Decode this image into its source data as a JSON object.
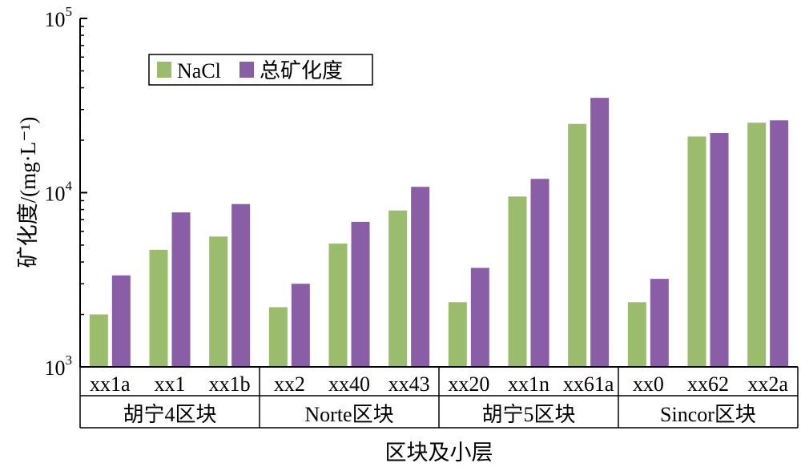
{
  "chart_data": {
    "type": "bar",
    "y_scale": "log",
    "ylim": [
      1000,
      100000
    ],
    "y_ticks": [
      {
        "value": 1000,
        "base": "10",
        "exp": "3"
      },
      {
        "value": 10000,
        "base": "10",
        "exp": "4"
      },
      {
        "value": 100000,
        "base": "10",
        "exp": "5"
      }
    ],
    "ylabel": "矿化度/(mg·L⁻¹)",
    "xlabel": "区块及小层",
    "categories": [
      "xx1a",
      "xx1",
      "xx1b",
      "xx2",
      "xx40",
      "xx43",
      "xx20",
      "xx1n",
      "xx61a",
      "xx0",
      "xx62",
      "xx2a"
    ],
    "groups": [
      {
        "label": "胡宁4区块",
        "start": 0,
        "end": 2
      },
      {
        "label": "Norte区块",
        "start": 3,
        "end": 5
      },
      {
        "label": "胡宁5区块",
        "start": 6,
        "end": 8
      },
      {
        "label": "Sincor区块",
        "start": 9,
        "end": 11
      }
    ],
    "series": [
      {
        "name": "NaCl",
        "color": "#9bbb6d",
        "values": [
          2000,
          4700,
          5600,
          2200,
          5100,
          7900,
          2350,
          9500,
          24800,
          2350,
          21000,
          25200
        ]
      },
      {
        "name": "总矿化度",
        "color": "#8a5ea6",
        "values": [
          3350,
          7700,
          8600,
          3000,
          6800,
          10800,
          3700,
          12000,
          35000,
          3200,
          22000,
          26000
        ]
      }
    ],
    "legend_position": "top-left",
    "grid": false
  }
}
